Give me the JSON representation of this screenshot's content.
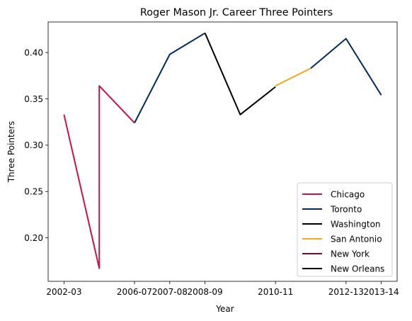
{
  "chart_data": {
    "type": "line",
    "title": "Roger Mason Jr. Career Three Pointers",
    "xlabel": "Year",
    "ylabel": "Three Pointers",
    "x_tick_labels": [
      "2002-03",
      "2006-07",
      "2007-08",
      "2008-09",
      "2010-11",
      "2012-13",
      "2013-14"
    ],
    "x_tick_positions": [
      0,
      2,
      3,
      4,
      6,
      8,
      9
    ],
    "ylim": [
      0.153,
      0.433
    ],
    "y_ticks": [
      0.2,
      0.25,
      0.3,
      0.35,
      0.4
    ],
    "y_tick_labels": [
      "0.20",
      "0.25",
      "0.30",
      "0.35",
      "0.40"
    ],
    "grid": false,
    "legend_position": "lower right",
    "series": [
      {
        "name": "Chicago",
        "color": "#ce1141",
        "x": [
          0,
          1,
          1,
          2
        ],
        "y": [
          0.333,
          0.167,
          0.364,
          0.324
        ]
      },
      {
        "name": "Toronto",
        "color": "#002b5c",
        "x": [
          2,
          3,
          4
        ],
        "y": [
          0.324,
          0.398,
          0.421
        ]
      },
      {
        "name": "Washington",
        "color": "#000000",
        "x": [
          4,
          5,
          6
        ],
        "y": [
          0.421,
          0.333,
          0.363
        ]
      },
      {
        "name": "San Antonio",
        "color": "#f5a623",
        "x": [
          6,
          7
        ],
        "y": [
          0.364,
          0.383
        ]
      },
      {
        "name": "New York",
        "color": "#7a0c2e",
        "x": [],
        "y": []
      },
      {
        "name": "New Orleans",
        "color": "#000000",
        "x": [],
        "y": []
      },
      {
        "name": "Toronto",
        "color": "#002b5c",
        "x": [
          7,
          8,
          9
        ],
        "y": [
          0.383,
          0.415,
          0.354
        ]
      }
    ],
    "legend": [
      {
        "name": "Chicago",
        "color": "#ce1141"
      },
      {
        "name": "Toronto",
        "color": "#002b5c"
      },
      {
        "name": "Washington",
        "color": "#000000"
      },
      {
        "name": "San Antonio",
        "color": "#f5a623"
      },
      {
        "name": "New York",
        "color": "#7a0c2e"
      },
      {
        "name": "New Orleans",
        "color": "#000000"
      }
    ]
  }
}
